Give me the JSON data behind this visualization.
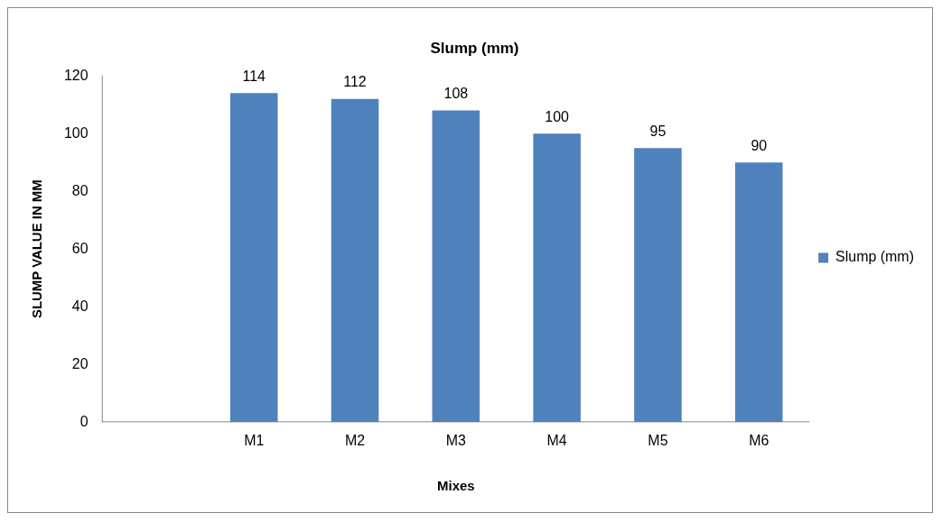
{
  "chart_data": {
    "type": "bar",
    "title": "Slump (mm)",
    "xlabel": "Mixes",
    "ylabel": "SLUMP VALUE IN MM",
    "categories": [
      null,
      "M1",
      "M2",
      "M3",
      "M4",
      "M5",
      "M6"
    ],
    "series": [
      {
        "name": "Slump (mm)",
        "color": "#4f81bd",
        "values": [
          null,
          114,
          112,
          108,
          100,
          95,
          90
        ]
      }
    ],
    "ylim": [
      0,
      120
    ],
    "yticks": [
      0,
      20,
      40,
      60,
      80,
      100,
      120
    ],
    "grid": false,
    "legend": "right",
    "data_labels": true
  }
}
